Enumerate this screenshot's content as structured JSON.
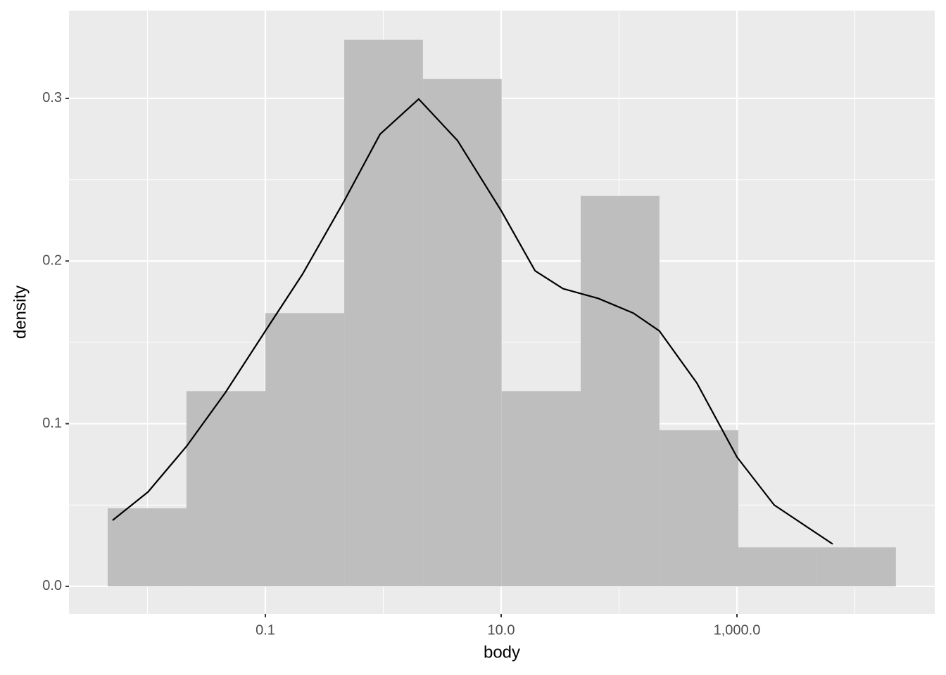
{
  "chart_data": {
    "type": "histogram",
    "xlabel": "body",
    "ylabel": "density",
    "bins": [
      0.0046,
      0.0214,
      0.1,
      0.467,
      2.17,
      10.1,
      47.3,
      220,
      1028,
      4786,
      22300
    ],
    "values": [
      0.048,
      0.12,
      0.168,
      0.336,
      0.312,
      0.12,
      0.24,
      0.096,
      0.024,
      0.024
    ],
    "color": "#bebebe",
    "line": {
      "color": "#000000",
      "x": [
        0.00506,
        0.0101,
        0.0214,
        0.0457,
        0.1,
        0.207,
        0.467,
        0.94,
        2.0,
        4.27,
        10,
        19.4,
        33.5,
        66.7,
        132,
        220,
        457,
        1000,
        2070,
        6490
      ],
      "y": [
        0.0406,
        0.058,
        0.086,
        0.119,
        0.157,
        0.192,
        0.237,
        0.278,
        0.2996,
        0.274,
        0.231,
        0.194,
        0.183,
        0.177,
        0.168,
        0.157,
        0.125,
        0.0795,
        0.05,
        0.026
      ]
    },
    "log_x": true,
    "xlim": [
      0.00216,
      47600
    ],
    "xticks": [
      {
        "value": 0.1,
        "label": "0.1"
      },
      {
        "value": 10,
        "label": "10.0"
      },
      {
        "value": 1000,
        "label": "1,000.0"
      }
    ],
    "xminor": [
      0.01,
      1,
      100,
      10000
    ],
    "ylim": [
      -0.0169,
      0.354
    ],
    "yticks": [
      {
        "value": 0,
        "label": "0.0"
      },
      {
        "value": 0.1,
        "label": "0.1"
      },
      {
        "value": 0.2,
        "label": "0.2"
      },
      {
        "value": 0.3,
        "label": "0.3"
      }
    ],
    "yminor": [
      0.05,
      0.15,
      0.25
    ],
    "grid": true,
    "panel_color": "#ebebeb"
  }
}
